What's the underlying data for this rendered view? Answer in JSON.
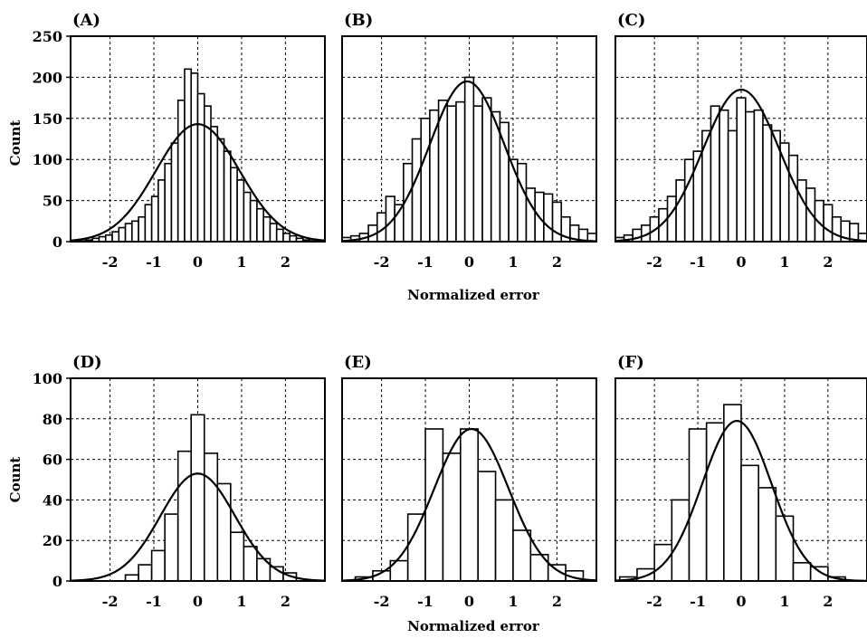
{
  "rows": [
    {
      "ylabel": "Count",
      "xlabel": "Normalized error",
      "ylim": [
        0,
        250
      ],
      "yticks": [
        0,
        50,
        100,
        150,
        200,
        250
      ],
      "chart_indices": [
        0,
        1,
        2
      ]
    },
    {
      "ylabel": "Count",
      "xlabel": "Normalized error",
      "ylim": [
        0,
        100
      ],
      "yticks": [
        0,
        20,
        40,
        60,
        80,
        100
      ],
      "chart_indices": [
        3,
        4,
        5
      ]
    }
  ],
  "xticks": [
    "-2",
    "-1",
    "0",
    "1",
    "2"
  ],
  "chart_data": [
    {
      "type": "bar",
      "panel": "(A)",
      "xlabel": "",
      "ylabel": "Count",
      "xlim": [
        -2.9,
        2.9
      ],
      "ylim": [
        0,
        250
      ],
      "grid": true,
      "bin_width": 0.15,
      "x": [
        -2.775,
        -2.625,
        -2.475,
        -2.325,
        -2.175,
        -2.025,
        -1.875,
        -1.725,
        -1.575,
        -1.425,
        -1.275,
        -1.125,
        -0.975,
        -0.825,
        -0.675,
        -0.525,
        -0.375,
        -0.225,
        -0.075,
        0.075,
        0.225,
        0.375,
        0.525,
        0.675,
        0.825,
        0.975,
        1.125,
        1.275,
        1.425,
        1.575,
        1.725,
        1.875,
        2.025,
        2.175,
        2.325,
        2.475,
        2.625,
        2.775
      ],
      "values": [
        0,
        1,
        2,
        4,
        6,
        8,
        12,
        17,
        22,
        25,
        30,
        45,
        55,
        75,
        95,
        120,
        172,
        210,
        205,
        180,
        165,
        140,
        125,
        110,
        90,
        75,
        60,
        50,
        40,
        30,
        22,
        15,
        10,
        7,
        4,
        2,
        1,
        0
      ],
      "fit": {
        "kind": "gaussian",
        "mean": 0,
        "sd": 0.95,
        "peak": 143
      }
    },
    {
      "type": "bar",
      "panel": "(B)",
      "xlabel": "Normalized error",
      "ylabel": "",
      "xlim": [
        -2.9,
        2.9
      ],
      "ylim": [
        0,
        250
      ],
      "grid": true,
      "bin_width": 0.2,
      "x": [
        -2.8,
        -2.6,
        -2.4,
        -2.2,
        -2.0,
        -1.8,
        -1.6,
        -1.4,
        -1.2,
        -1.0,
        -0.8,
        -0.6,
        -0.4,
        -0.2,
        0.0,
        0.2,
        0.4,
        0.6,
        0.8,
        1.0,
        1.2,
        1.4,
        1.6,
        1.8,
        2.0,
        2.2,
        2.4,
        2.6,
        2.8
      ],
      "values": [
        5,
        7,
        10,
        20,
        35,
        55,
        45,
        95,
        125,
        150,
        160,
        172,
        165,
        170,
        200,
        165,
        175,
        158,
        145,
        100,
        95,
        65,
        60,
        58,
        48,
        30,
        20,
        15,
        10
      ],
      "fit": {
        "kind": "gaussian",
        "mean": -0.05,
        "sd": 0.85,
        "peak": 195
      }
    },
    {
      "type": "bar",
      "panel": "(C)",
      "xlabel": "",
      "ylabel": "",
      "xlim": [
        -2.9,
        2.9
      ],
      "ylim": [
        0,
        250
      ],
      "grid": true,
      "bin_width": 0.2,
      "x": [
        -2.8,
        -2.6,
        -2.4,
        -2.2,
        -2.0,
        -1.8,
        -1.6,
        -1.4,
        -1.2,
        -1.0,
        -0.8,
        -0.6,
        -0.4,
        -0.2,
        0.0,
        0.2,
        0.4,
        0.6,
        0.8,
        1.0,
        1.2,
        1.4,
        1.6,
        1.8,
        2.0,
        2.2,
        2.4,
        2.6,
        2.8
      ],
      "values": [
        5,
        8,
        15,
        20,
        30,
        40,
        55,
        75,
        100,
        110,
        135,
        165,
        160,
        135,
        175,
        158,
        160,
        142,
        135,
        120,
        105,
        75,
        65,
        50,
        45,
        30,
        25,
        22,
        10
      ],
      "fit": {
        "kind": "gaussian",
        "mean": 0.0,
        "sd": 0.88,
        "peak": 185
      }
    },
    {
      "type": "bar",
      "panel": "(D)",
      "xlabel": "",
      "ylabel": "Count",
      "xlim": [
        -2.9,
        2.9
      ],
      "ylim": [
        0,
        100
      ],
      "grid": true,
      "bin_width": 0.3,
      "x": [
        -2.7,
        -2.4,
        -2.1,
        -1.8,
        -1.5,
        -1.2,
        -0.9,
        -0.6,
        -0.3,
        0.0,
        0.3,
        0.6,
        0.9,
        1.2,
        1.5,
        1.8,
        2.1,
        2.4,
        2.7
      ],
      "values": [
        0,
        0,
        0,
        0,
        3,
        8,
        15,
        33,
        64,
        82,
        63,
        48,
        24,
        17,
        11,
        7,
        4,
        0,
        0
      ],
      "fit": {
        "kind": "gaussian",
        "mean": 0.0,
        "sd": 0.85,
        "peak": 53
      }
    },
    {
      "type": "bar",
      "panel": "(E)",
      "xlabel": "Normalized error",
      "ylabel": "",
      "xlim": [
        -2.9,
        2.9
      ],
      "ylim": [
        0,
        100
      ],
      "grid": true,
      "bin_width": 0.4,
      "x": [
        -2.4,
        -2.0,
        -1.6,
        -1.2,
        -0.8,
        -0.4,
        0.0,
        0.4,
        0.8,
        1.2,
        1.6,
        2.0,
        2.4,
        2.8
      ],
      "values": [
        2,
        5,
        10,
        33,
        75,
        63,
        75,
        54,
        40,
        25,
        13,
        8,
        5,
        0
      ],
      "fit": {
        "kind": "gaussian",
        "mean": 0.05,
        "sd": 0.85,
        "peak": 75
      }
    },
    {
      "type": "bar",
      "panel": "(F)",
      "xlabel": "",
      "ylabel": "",
      "xlim": [
        -2.9,
        2.9
      ],
      "ylim": [
        0,
        100
      ],
      "grid": true,
      "bin_width": 0.4,
      "x": [
        -2.6,
        -2.2,
        -1.8,
        -1.4,
        -1.0,
        -0.6,
        -0.2,
        0.2,
        0.6,
        1.0,
        1.4,
        1.8,
        2.2,
        2.6
      ],
      "values": [
        2,
        6,
        18,
        40,
        75,
        78,
        87,
        57,
        46,
        32,
        9,
        7,
        2,
        0
      ],
      "fit": {
        "kind": "gaussian",
        "mean": -0.1,
        "sd": 0.8,
        "peak": 79
      }
    }
  ]
}
